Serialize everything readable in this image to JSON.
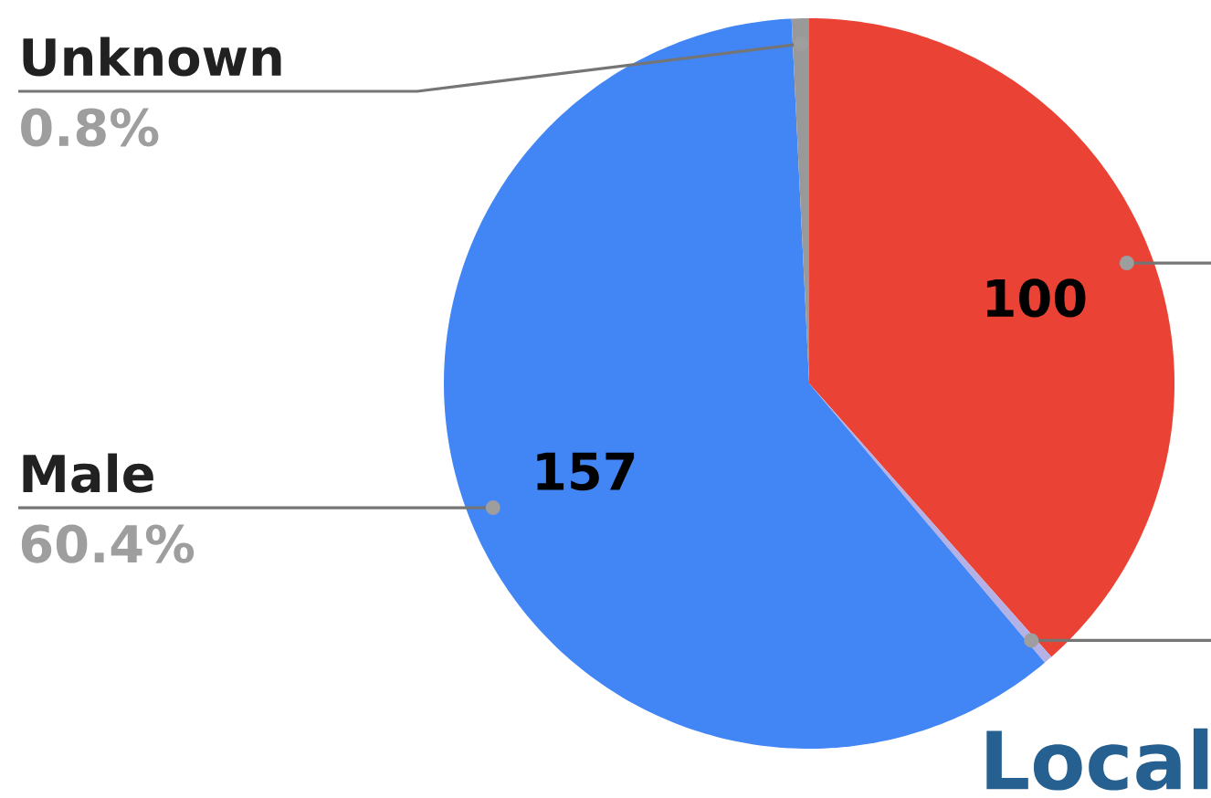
{
  "chart_data": {
    "type": "pie",
    "categories": [
      null,
      null,
      "Male",
      "Unknown"
    ],
    "values": [
      100,
      1,
      157,
      2
    ],
    "colors": [
      "#ea4335",
      "#b4b1e6",
      "#4285f4",
      "#999999"
    ],
    "value_labels": [
      "100",
      null,
      "157",
      null
    ],
    "annotations": [
      "60.4%",
      "0.8%",
      "Local"
    ]
  }
}
